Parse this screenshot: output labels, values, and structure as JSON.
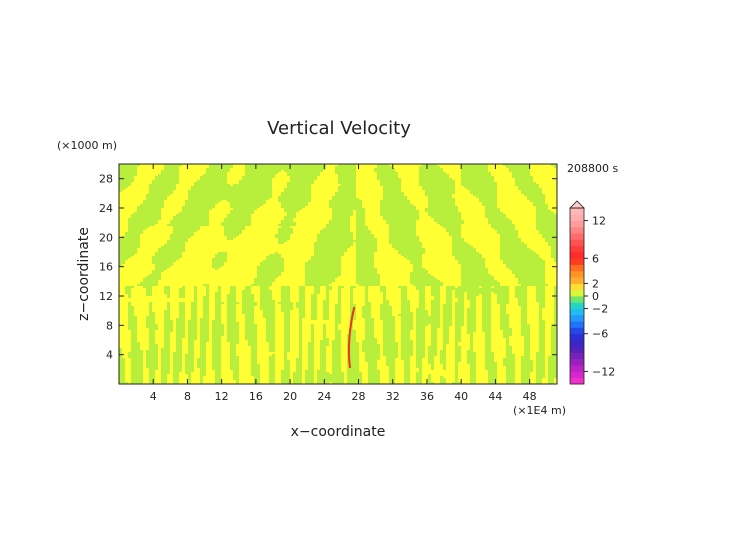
{
  "chart_data": {
    "type": "heatmap",
    "title": "Vertical Velocity",
    "xlabel": "x−coordinate",
    "ylabel": "z−coordinate",
    "x_unit": "(×1E4 m)",
    "y_unit": "(×1000 m)",
    "time_label": "208800 s",
    "xlim": [
      0,
      51.2
    ],
    "ylim": [
      0,
      30
    ],
    "x_ticks": [
      4,
      8,
      12,
      16,
      20,
      24,
      28,
      32,
      36,
      40,
      44,
      48
    ],
    "y_ticks": [
      4,
      8,
      12,
      16,
      20,
      24,
      28
    ],
    "colorbar": {
      "range": [
        -14,
        14
      ],
      "tick_values": [
        12,
        6,
        2,
        0,
        -2,
        -6,
        -12
      ],
      "tick_labels": [
        "12",
        "6",
        "2",
        "0",
        "−2",
        "−6",
        "−12"
      ],
      "extend_top": true
    },
    "dominant_field_colors": [
      "#ffff33",
      "#b8ee3c"
    ],
    "feature_color": "#ee3311"
  }
}
